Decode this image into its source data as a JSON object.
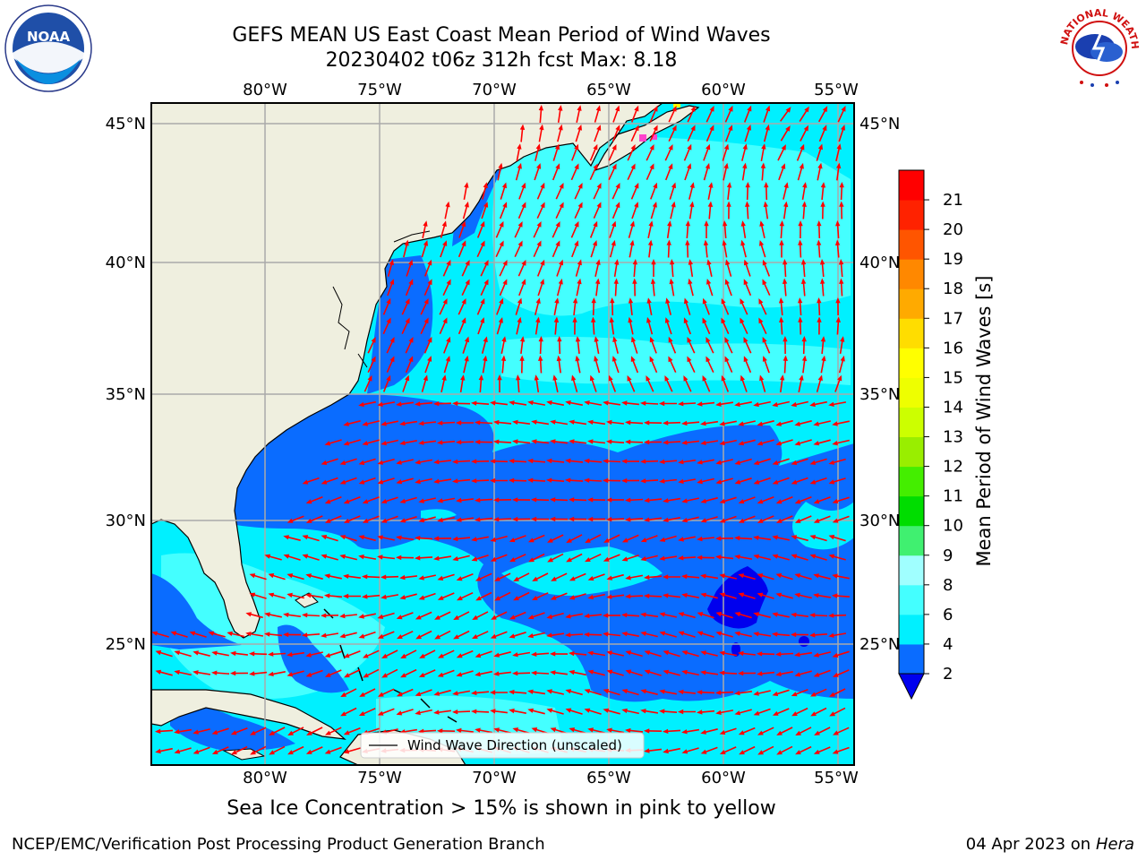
{
  "title": {
    "line1": "GEFS MEAN US East Coast Mean Period of Wind Waves",
    "line2": "20230402 t06z 312h fcst   Max: 8.18"
  },
  "map": {
    "lon_labels": [
      "80°W",
      "75°W",
      "70°W",
      "65°W",
      "60°W",
      "55°W"
    ],
    "lat_labels": [
      "45°N",
      "40°N",
      "35°N",
      "30°N",
      "25°N"
    ],
    "legend_label": "Wind Wave Direction (unscaled)",
    "arrow_color": "#ff0000",
    "land_color": "#efefdf",
    "ice_color": "#ff44cc"
  },
  "colorbar": {
    "label": "Mean Period of Wind Waves [s]",
    "ticks": [
      "2",
      "4",
      "6",
      "8",
      "9",
      "10",
      "11",
      "12",
      "13",
      "14",
      "15",
      "16",
      "17",
      "18",
      "19",
      "20",
      "21"
    ],
    "colors": [
      "#0a6cff",
      "#00f0ff",
      "#44ffff",
      "#a0ffff",
      "#40f070",
      "#00dd00",
      "#44ee00",
      "#99ee00",
      "#ccff00",
      "#eeff00",
      "#ffff00",
      "#ffdd00",
      "#ffaa00",
      "#ff8800",
      "#ff5500",
      "#ff2200",
      "#ff0000"
    ],
    "under_color": "#0000ee"
  },
  "caption": "Sea Ice Concentration > 15% is shown in pink to yellow",
  "footer": {
    "left": "NCEP/EMC/Verification Post Processing Product Generation Branch",
    "right_date": "04 Apr 2023 on ",
    "right_host": "Hera"
  },
  "logos": {
    "noaa_text": "NOAA",
    "nws_text": "NATIONAL WEATHER SERVICE"
  }
}
